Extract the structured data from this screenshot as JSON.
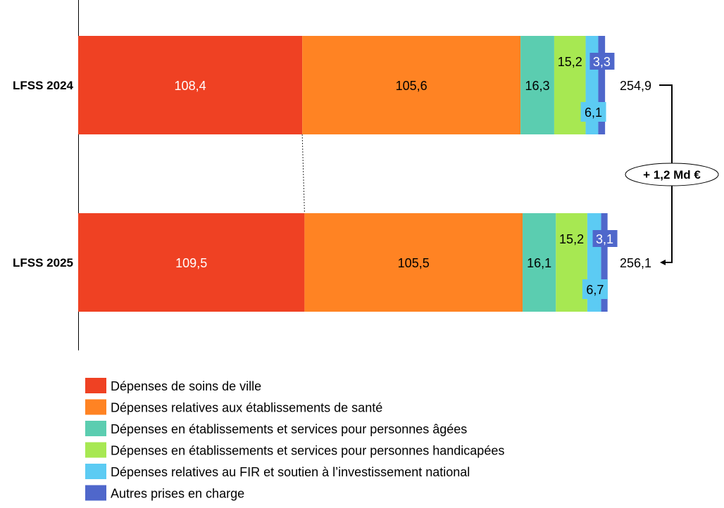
{
  "chart_data": {
    "type": "bar",
    "orientation": "horizontal",
    "stacked": true,
    "categories": [
      "LFSS 2024",
      "LFSS 2025"
    ],
    "series": [
      {
        "name": "Dépenses de soins de ville",
        "color": "#EF4123",
        "values": [
          108.4,
          109.5
        ],
        "labels": [
          "108,4",
          "109,5"
        ],
        "label_color": "#ffffff"
      },
      {
        "name": "Dépenses relatives aux établissements de santé",
        "color": "#FF8323",
        "values": [
          105.6,
          105.5
        ],
        "labels": [
          "105,6",
          "105,5"
        ],
        "label_color": "#000000"
      },
      {
        "name": "Dépenses en établissements et services pour personnes âgées",
        "color": "#5BCDB0",
        "values": [
          16.3,
          16.1
        ],
        "labels": [
          "16,3",
          "16,1"
        ],
        "label_color": "#000000"
      },
      {
        "name": "Dépenses en établissements et services pour personnes handicapées",
        "color": "#A7E852",
        "values": [
          15.2,
          15.2
        ],
        "labels": [
          "15,2",
          "15,2"
        ],
        "label_color": "#000000"
      },
      {
        "name": "Dépenses relatives au FIR et soutien à l’investissement national",
        "color": "#5CCBF3",
        "values": [
          6.1,
          6.7
        ],
        "labels": [
          "6,1",
          "6,7"
        ],
        "label_color": "#000000"
      },
      {
        "name": "Autres prises en charge",
        "color": "#4F67CB",
        "values": [
          3.3,
          3.1
        ],
        "labels": [
          "3,3",
          "3,1"
        ],
        "label_color": "#ffffff"
      }
    ],
    "totals": [
      "254,9",
      "256,1"
    ],
    "total_values": [
      254.9,
      256.1
    ],
    "difference_label": "+ 1,2 Md €",
    "legend_position": "bottom-left",
    "grid": false,
    "xaxis_visible": false
  }
}
